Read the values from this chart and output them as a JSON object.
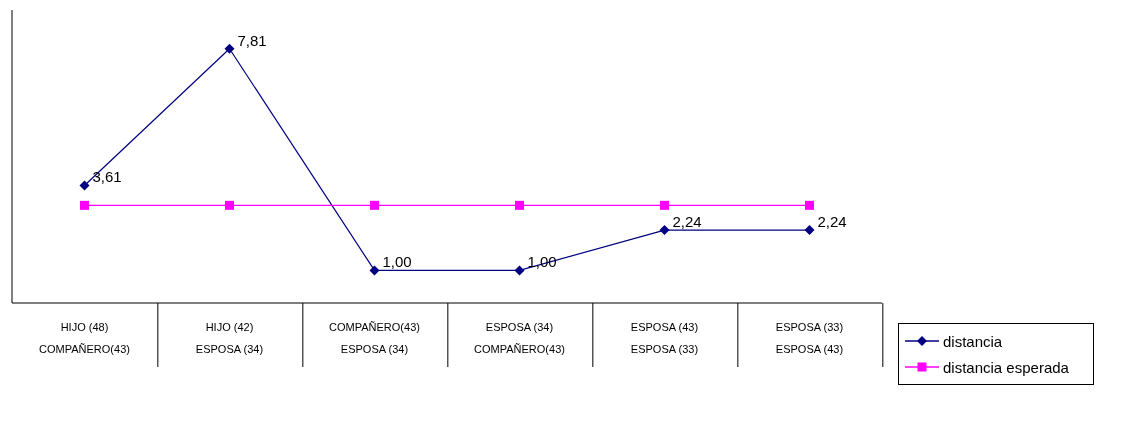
{
  "chart_data": {
    "type": "line",
    "categories": [
      "HIJO (48)\nCOMPAÑERO(43)",
      "HIJO (42)\nESPOSA (34)",
      "COMPAÑERO(43)\nESPOSA (34)",
      "ESPOSA (34)\nCOMPAÑERO(43)",
      "ESPOSA (43)\nESPOSA (33)",
      "ESPOSA (33)\nESPOSA (43)"
    ],
    "ylim": [
      0,
      9
    ],
    "tick_labels": "x",
    "grid": false,
    "legend": "bottom right",
    "series": [
      {
        "name": "distancia",
        "color": "#000080",
        "marker": "diamond",
        "values": [
          3.61,
          7.81,
          1.0,
          1.0,
          2.24,
          2.24
        ],
        "value_labels": [
          "3,61",
          "7,81",
          "1,00",
          "1,00",
          "2,24",
          "2,24"
        ]
      },
      {
        "name": "distancia esperada",
        "color": "#ff00ff",
        "marker": "square",
        "values": [
          3.0,
          3.0,
          3.0,
          3.0,
          3.0,
          3.0
        ]
      }
    ]
  }
}
